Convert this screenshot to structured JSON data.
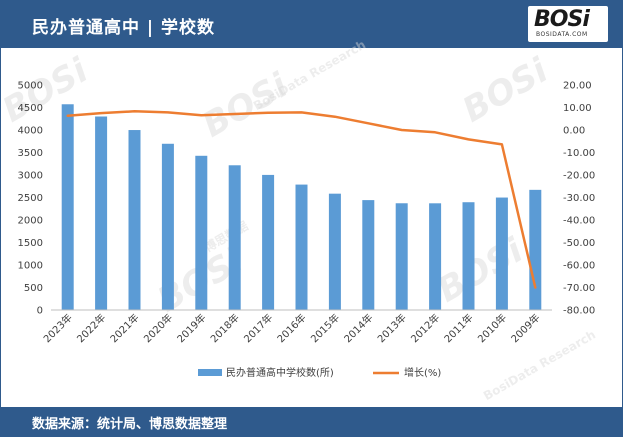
{
  "header": {
    "title": "民办普通高中 | 学校数",
    "logo_text": "BOSi",
    "logo_sub": "BOSIDATA.COM"
  },
  "footer": {
    "source": "数据来源：统计局、博思数据整理"
  },
  "colors": {
    "header_bg": "#2f5a8c",
    "bar": "#5b9bd5",
    "line": "#ed7d31"
  },
  "chart_data": {
    "type": "bar+line",
    "categories": [
      "2023年",
      "2022年",
      "2021年",
      "2020年",
      "2019年",
      "2018年",
      "2017年",
      "2016年",
      "2015年",
      "2014年",
      "2013年",
      "2012年",
      "2011年",
      "2010年",
      "2009年"
    ],
    "series": [
      {
        "name": "民办普通高中学校数(所)",
        "type": "bar",
        "axis": "left",
        "values": [
          4572,
          4300,
          3999,
          3694,
          3427,
          3216,
          3002,
          2787,
          2585,
          2442,
          2372,
          2371,
          2395,
          2499,
          2670
        ]
      },
      {
        "name": "增长(%)",
        "type": "line",
        "axis": "right",
        "values": [
          6.3,
          7.5,
          8.3,
          7.8,
          6.6,
          7.1,
          7.7,
          7.8,
          5.9,
          3.0,
          0.0,
          -1.0,
          -4.2,
          -6.4,
          -70.0
        ]
      }
    ],
    "left_axis": {
      "min": 0,
      "max": 5000,
      "step": 500,
      "ticks": [
        "0",
        "500",
        "1000",
        "1500",
        "2000",
        "2500",
        "3000",
        "3500",
        "4000",
        "4500",
        "5000"
      ]
    },
    "right_axis": {
      "min": -80,
      "max": 20,
      "step": 10,
      "ticks": [
        "-80.00",
        "-70.00",
        "-60.00",
        "-50.00",
        "-40.00",
        "-30.00",
        "-20.00",
        "-10.00",
        "0.00",
        "10.00",
        "20.00"
      ]
    },
    "legend_position": "bottom",
    "grid": false
  },
  "watermarks": {
    "logo": "BOSi",
    "cn": "博思数据",
    "en": "BosiData Research"
  }
}
